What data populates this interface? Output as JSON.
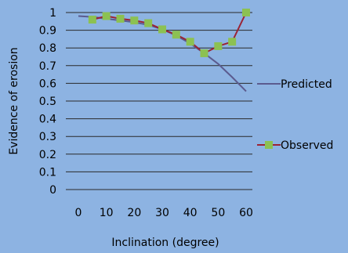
{
  "chart_data": {
    "type": "line",
    "xlabel": "Inclination (degree)",
    "ylabel": "Evidence of erosion",
    "xlim": [
      0,
      60
    ],
    "ylim": [
      0,
      1
    ],
    "x_ticks": [
      "0",
      "10",
      "20",
      "30",
      "40",
      "50",
      "60"
    ],
    "y_ticks": [
      "0",
      "0.1",
      "0.2",
      "0.3",
      "0.4",
      "0.5",
      "0.6",
      "0.7",
      "0.8",
      "0.9",
      "1"
    ],
    "grid": "horizontal",
    "legend_position": "right",
    "series": [
      {
        "name": "Predicted",
        "color": "#5b5b8f",
        "marker": "none",
        "points": [
          [
            0,
            0.98
          ],
          [
            5,
            0.975
          ],
          [
            10,
            0.965
          ],
          [
            15,
            0.955
          ],
          [
            20,
            0.945
          ],
          [
            25,
            0.93
          ],
          [
            30,
            0.905
          ],
          [
            35,
            0.87
          ],
          [
            40,
            0.825
          ],
          [
            45,
            0.77
          ],
          [
            50,
            0.71
          ],
          [
            55,
            0.635
          ],
          [
            60,
            0.555
          ]
        ]
      },
      {
        "name": "Observed",
        "color": "#9b2335",
        "marker_color": "#8cc152",
        "marker": "square",
        "points": [
          [
            5,
            0.96
          ],
          [
            10,
            0.98
          ],
          [
            15,
            0.965
          ],
          [
            20,
            0.955
          ],
          [
            25,
            0.94
          ],
          [
            30,
            0.905
          ],
          [
            35,
            0.875
          ],
          [
            40,
            0.835
          ],
          [
            45,
            0.77
          ],
          [
            50,
            0.81
          ],
          [
            55,
            0.835
          ],
          [
            60,
            1.0
          ]
        ]
      }
    ]
  }
}
